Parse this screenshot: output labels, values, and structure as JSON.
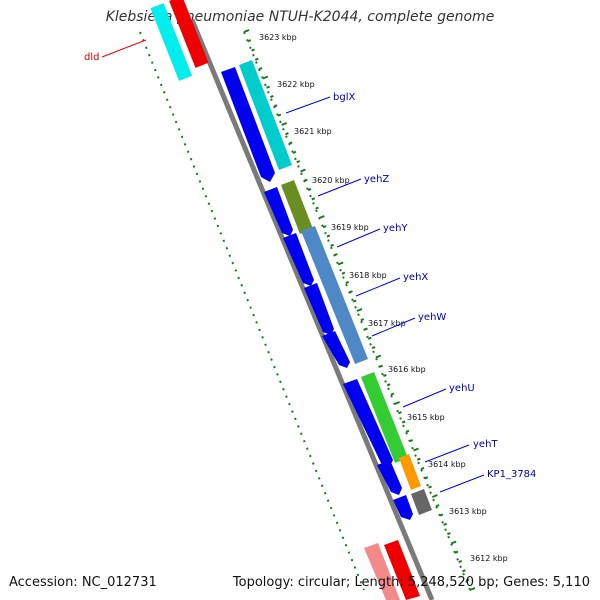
{
  "title": "Klebsiella pneumoniae NTUH-K2044, complete genome",
  "footer": {
    "accession": "Accession: NC_012731",
    "summary": "Topology: circular; Length: 5,248,520 bp; Genes: 5,110"
  },
  "ticks": [
    "3623 kbp",
    "3622 kbp",
    "3621 kbp",
    "3620 kbp",
    "3619 kbp",
    "3618 kbp",
    "3617 kbp",
    "3616 kbp",
    "3615 kbp",
    "3614 kbp",
    "3613 kbp",
    "3612 kbp"
  ],
  "gene_labels": [
    {
      "name": "dld",
      "color": "#cc0000"
    },
    {
      "name": "bglX",
      "color": "#0000aa"
    },
    {
      "name": "yehZ",
      "color": "#0000aa"
    },
    {
      "name": "yehY",
      "color": "#0000aa"
    },
    {
      "name": "yehX",
      "color": "#0000aa"
    },
    {
      "name": "yehW",
      "color": "#0000aa"
    },
    {
      "name": "yehU",
      "color": "#0000aa"
    },
    {
      "name": "yehT",
      "color": "#0000aa"
    },
    {
      "name": "KP1_3784",
      "color": "#0000aa"
    }
  ],
  "colors": {
    "backbone": "#7a7a7a",
    "cds": "#0000ee",
    "tick": "#1a7a1a",
    "gene_line": "#0000ee",
    "dld_line": "#ee0000"
  }
}
